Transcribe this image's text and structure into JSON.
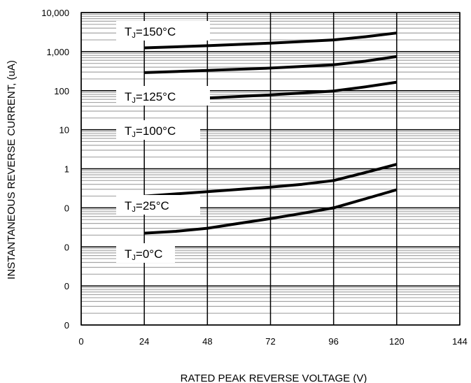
{
  "chart_data": {
    "type": "line",
    "title": "",
    "xlabel": "RATED PEAK REVERSE VOLTAGE (V)",
    "ylabel": "INSTANTANEOUS REVERSE CURRENT, (uA)",
    "xlim": [
      0,
      144
    ],
    "x_ticks": [
      0,
      24,
      48,
      72,
      96,
      120,
      144
    ],
    "x_tick_labels": [
      "0",
      "24",
      "48",
      "72",
      "96",
      "120",
      "144"
    ],
    "y_scale": "log",
    "ylim": [
      0.0001,
      10000
    ],
    "y_ticks": [
      0.0001,
      0.001,
      0.01,
      0.1,
      1,
      10,
      100,
      1000,
      10000
    ],
    "y_tick_labels": [
      "0",
      "0",
      "0",
      "0",
      "1",
      "10",
      "100",
      "1,000",
      "10,000"
    ],
    "grid": true,
    "series": [
      {
        "label_prefix": "T",
        "label_sub": "J",
        "label_suffix": "=150°C",
        "x": [
          24,
          48,
          72,
          96,
          108,
          120
        ],
        "y": [
          1250,
          1420,
          1650,
          2000,
          2400,
          3000
        ]
      },
      {
        "x": [
          24,
          48,
          72,
          96,
          108,
          120
        ],
        "y": [
          290,
          330,
          380,
          460,
          570,
          750
        ]
      },
      {
        "label_prefix": "T",
        "label_sub": "J",
        "label_suffix": "=125°C",
        "x": [
          24,
          48,
          72,
          96,
          108,
          120
        ],
        "y": [
          56,
          65,
          78,
          98,
          125,
          165
        ]
      },
      {
        "label_prefix": "T",
        "label_sub": "J",
        "label_suffix": "=100°C"
      },
      {
        "label_prefix": "T",
        "label_sub": "J",
        "label_suffix": "=25°C",
        "x": [
          24,
          48,
          72,
          84,
          96,
          108,
          120
        ],
        "y": [
          0.2,
          0.26,
          0.34,
          0.4,
          0.5,
          0.8,
          1.3
        ]
      },
      {
        "label_prefix": "T",
        "label_sub": "J",
        "label_suffix": "=0°C",
        "x": [
          24,
          36,
          48,
          60,
          72,
          84,
          96,
          108,
          120
        ],
        "y": [
          0.0225,
          0.025,
          0.03,
          0.04,
          0.053,
          0.072,
          0.1,
          0.17,
          0.29
        ]
      }
    ]
  }
}
